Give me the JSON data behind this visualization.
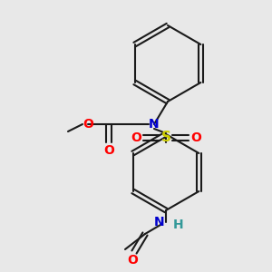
{
  "bg_color": "#e8e8e8",
  "bond_color": "#1a1a1a",
  "bond_width": 1.5,
  "N_color": "#0000cc",
  "S_color": "#cccc00",
  "O_color": "#ff0000",
  "H_color": "#339999",
  "ts": 10,
  "fig_width": 3.0,
  "fig_height": 3.0,
  "xlim": [
    0,
    300
  ],
  "ylim": [
    0,
    300
  ]
}
